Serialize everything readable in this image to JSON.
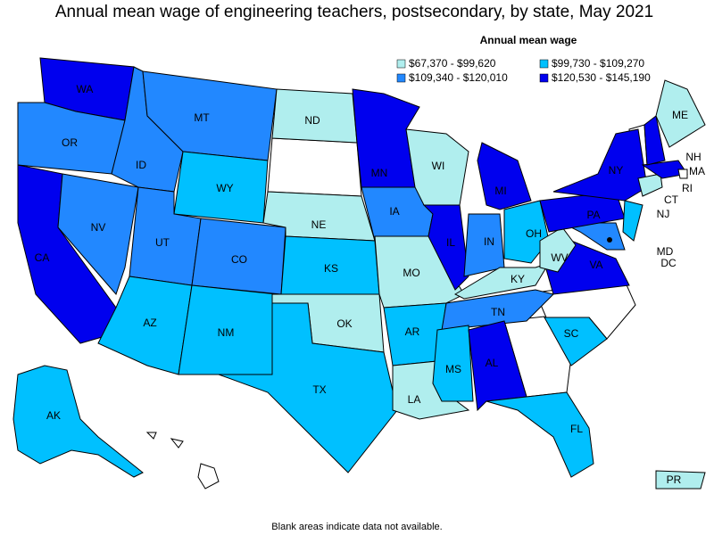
{
  "title": "Annual mean wage of engineering teachers, postsecondary, by state, May 2021",
  "legend": {
    "title": "Annual mean wage",
    "items": [
      {
        "label": "$67,370 - $99,620",
        "color": "#b0eeee"
      },
      {
        "label": "$99,730 - $109,270",
        "color": "#00c0ff"
      },
      {
        "label": "$109,340 - $120,010",
        "color": "#2288ff"
      },
      {
        "label": "$120,530 - $145,190",
        "color": "#0000ee"
      }
    ]
  },
  "states": [
    {
      "label": "WA",
      "color": "#0000ee"
    },
    {
      "label": "OR",
      "color": "#2288ff"
    },
    {
      "label": "CA",
      "color": "#0000ee"
    },
    {
      "label": "NV",
      "color": "#2288ff"
    },
    {
      "label": "ID",
      "color": "#2288ff"
    },
    {
      "label": "MT",
      "color": "#2288ff"
    },
    {
      "label": "WY",
      "color": "#00c0ff"
    },
    {
      "label": "UT",
      "color": "#2288ff"
    },
    {
      "label": "AZ",
      "color": "#00c0ff"
    },
    {
      "label": "CO",
      "color": "#2288ff"
    },
    {
      "label": "NM",
      "color": "#00c0ff"
    },
    {
      "label": "ND",
      "color": "#b0eeee"
    },
    {
      "label": "NE",
      "color": "#b0eeee"
    },
    {
      "label": "KS",
      "color": "#00c0ff"
    },
    {
      "label": "OK",
      "color": "#b0eeee"
    },
    {
      "label": "TX",
      "color": "#00c0ff"
    },
    {
      "label": "MN",
      "color": "#0000ee"
    },
    {
      "label": "IA",
      "color": "#2288ff"
    },
    {
      "label": "MO",
      "color": "#b0eeee"
    },
    {
      "label": "AR",
      "color": "#00c0ff"
    },
    {
      "label": "LA",
      "color": "#b0eeee"
    },
    {
      "label": "WI",
      "color": "#b0eeee"
    },
    {
      "label": "IL",
      "color": "#0000ee"
    },
    {
      "label": "MI",
      "color": "#0000ee"
    },
    {
      "label": "IN",
      "color": "#2288ff"
    },
    {
      "label": "OH",
      "color": "#00c0ff"
    },
    {
      "label": "KY",
      "color": "#b0eeee"
    },
    {
      "label": "TN",
      "color": "#2288ff"
    },
    {
      "label": "MS",
      "color": "#00c0ff"
    },
    {
      "label": "AL",
      "color": "#0000ee"
    },
    {
      "label": "FL",
      "color": "#00c0ff"
    },
    {
      "label": "SC",
      "color": "#00c0ff"
    },
    {
      "label": "VA",
      "color": "#0000ee"
    },
    {
      "label": "WV",
      "color": "#b0eeee"
    },
    {
      "label": "MD",
      "color": "#2288ff"
    },
    {
      "label": "PA",
      "color": "#0000ee"
    },
    {
      "label": "NY",
      "color": "#0000ee"
    },
    {
      "label": "NJ",
      "color": "#00c0ff"
    },
    {
      "label": "CT",
      "color": "#b0eeee"
    },
    {
      "label": "MA",
      "color": "#0000ee"
    },
    {
      "label": "NH",
      "color": "#0000ee"
    },
    {
      "label": "ME",
      "color": "#b0eeee"
    },
    {
      "label": "AK",
      "color": "#00c0ff"
    },
    {
      "label": "PR",
      "color": "#b0eeee"
    },
    {
      "label": "RI",
      "color": "#ffffff"
    },
    {
      "label": "DC",
      "color": "#0000ee"
    }
  ],
  "footnote": "Blank areas indicate data not available."
}
